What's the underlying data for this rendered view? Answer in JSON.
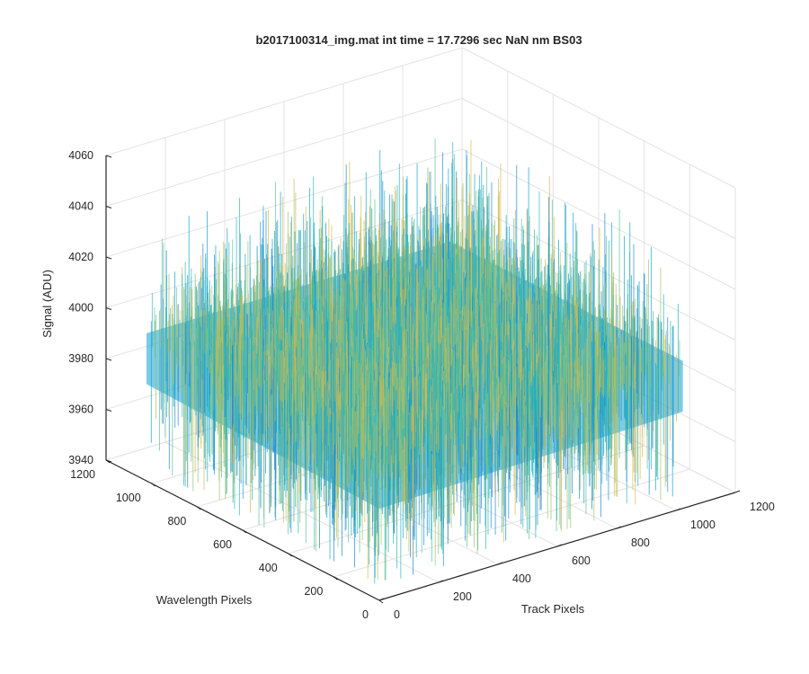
{
  "chart_data": {
    "type": "surface",
    "title": "b2017100314_img.mat int time = 17.7296 sec  NaN nm BS03",
    "xlabel": "Track Pixels",
    "ylabel": "Wavelength Pixels",
    "zlabel": "Signal (ADU)",
    "xlim": [
      0,
      1200
    ],
    "ylim": [
      0,
      1200
    ],
    "zlim": [
      3940,
      4060
    ],
    "xticks": [
      "0",
      "200",
      "400",
      "600",
      "800",
      "1000",
      "1200"
    ],
    "yticks": [
      "0",
      "200",
      "400",
      "600",
      "800",
      "1000",
      "1200"
    ],
    "zticks": [
      "3940",
      "3960",
      "3980",
      "4000",
      "4020",
      "4040",
      "4060"
    ],
    "surface": {
      "x_range": [
        1,
        1024
      ],
      "y_range": [
        1,
        1024
      ],
      "mean_signal": 3990,
      "typical_range": [
        3960,
        4020
      ],
      "extreme_range": [
        3945,
        4045
      ]
    },
    "colormap": "parula",
    "colors": [
      "#1f86d8",
      "#12a2d1",
      "#2ab5b7",
      "#5cbf9a",
      "#9bbf6e",
      "#d4ba4d"
    ],
    "grid": true,
    "view": "3d"
  }
}
